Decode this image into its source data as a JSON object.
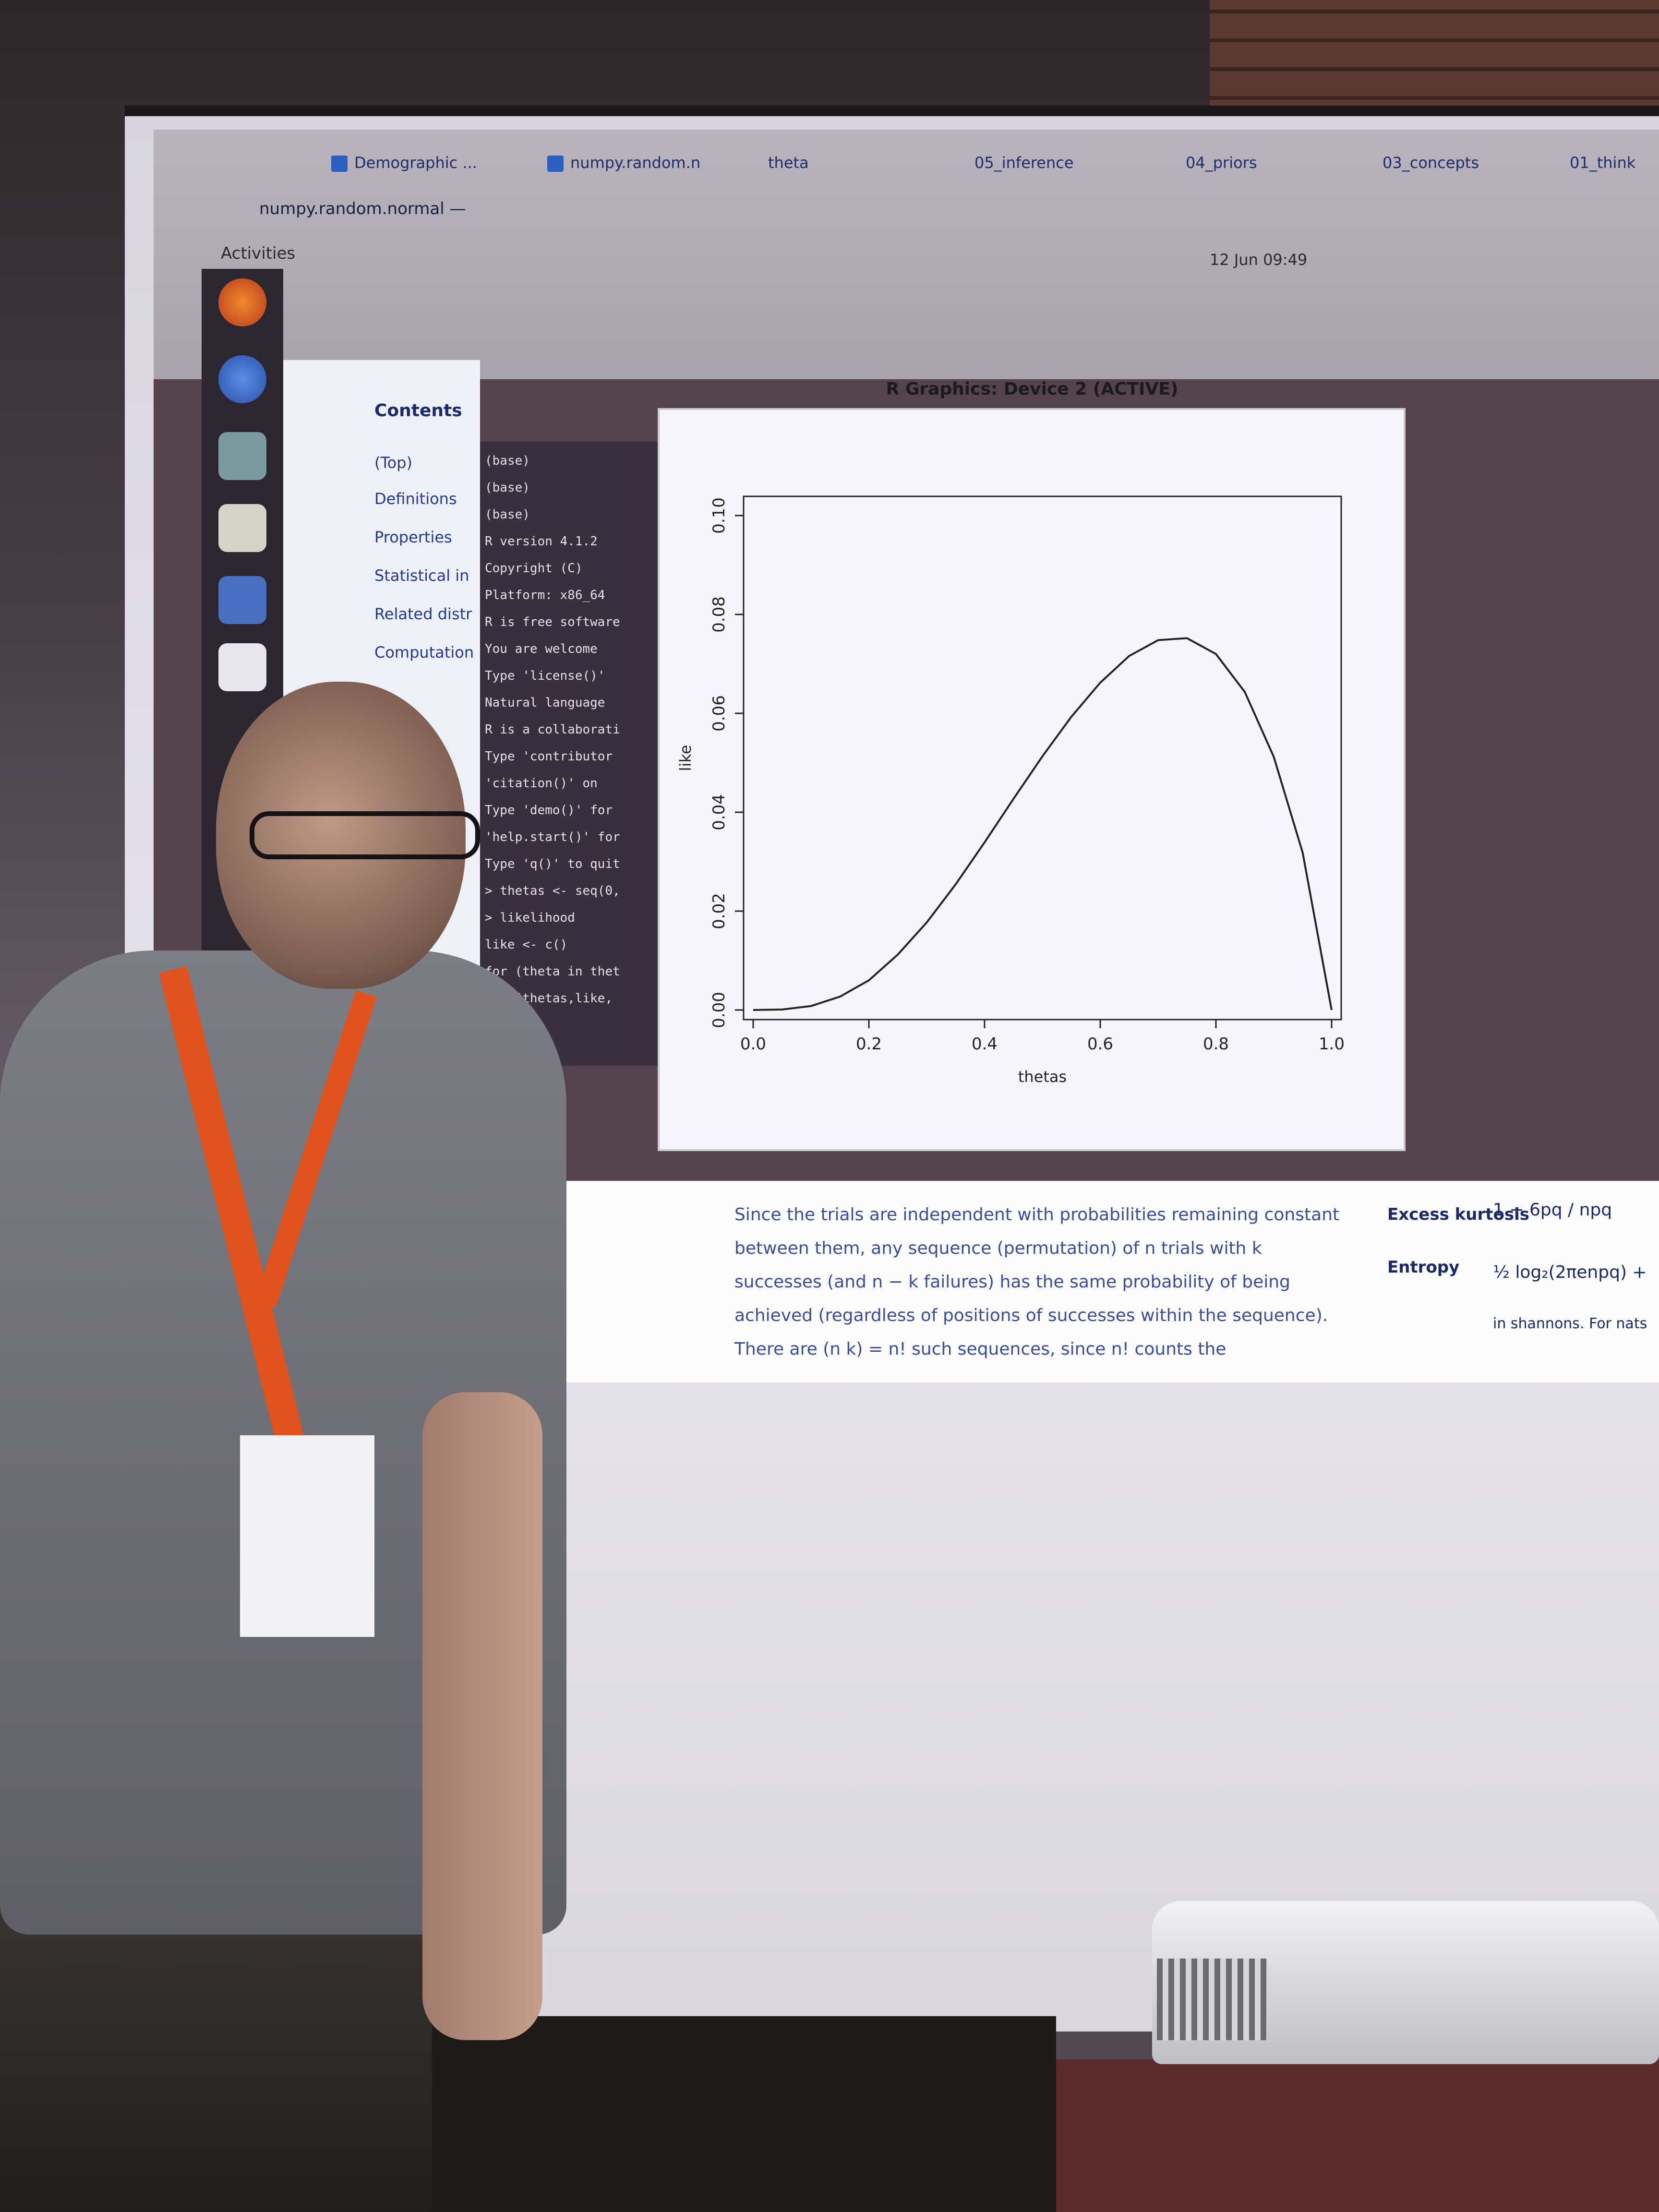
{
  "topbar": {
    "activities": "Activities",
    "clock": "12 Jun 09:49"
  },
  "tabs": [
    {
      "label": "Demographic ..."
    },
    {
      "label": "numpy.random.n"
    },
    {
      "label": "theta"
    },
    {
      "label": "05_inference"
    },
    {
      "label": "04_priors"
    },
    {
      "label": "03_concepts"
    },
    {
      "label": "01_think"
    }
  ],
  "url": "numpy.random.normal —",
  "sidebar": {
    "title": "Contents",
    "items": [
      "(Top)",
      "Definitions",
      "Properties",
      "Statistical in",
      "Related distr",
      "Computation"
    ]
  },
  "terminal": {
    "lines": [
      "(base)",
      "(base)",
      "(base)",
      "R version 4.1.2",
      "Copyright (C)",
      "Platform: x86_64",
      "R is free software",
      "You are welcome",
      "Type 'license()'",
      "Natural language",
      "R is a collaborati",
      "Type 'contributor",
      "'citation()' on",
      "Type 'demo()' for",
      "'help.start()' for",
      "Type 'q()' to quit",
      "> thetas <- seq(0,",
      "> likelihood",
      "  like <- c()",
      "  for (theta in thet",
      "plot(thetas,like,",
      "> ▯"
    ]
  },
  "rwindow": {
    "title": "R Graphics: Device 2 (ACTIVE)"
  },
  "chart_data": {
    "type": "line",
    "xlabel": "thetas",
    "ylabel": "like",
    "xlim": [
      0.0,
      1.0
    ],
    "ylim": [
      0.0,
      0.1
    ],
    "xticks": [
      "0.0",
      "0.2",
      "0.4",
      "0.6",
      "0.8",
      "1.0"
    ],
    "yticks": [
      "0.00",
      "0.02",
      "0.04",
      "0.06",
      "0.08",
      "0.10"
    ],
    "series": [
      {
        "x": [
          0.0,
          0.05,
          0.1,
          0.15,
          0.2,
          0.25,
          0.3,
          0.35,
          0.4,
          0.45,
          0.5,
          0.55,
          0.6,
          0.65,
          0.7,
          0.75,
          0.8,
          0.85,
          0.9,
          0.95,
          1.0
        ],
        "y": [
          0.0,
          0.0001,
          0.0008,
          0.0027,
          0.006,
          0.0112,
          0.0177,
          0.0254,
          0.0339,
          0.0427,
          0.0513,
          0.0593,
          0.0662,
          0.0716,
          0.0748,
          0.0752,
          0.072,
          0.0643,
          0.0512,
          0.0318,
          0.0
        ]
      }
    ],
    "grid": false
  },
  "doc": {
    "lines": [
      "Since the trials are independent with probabilities remaining constant",
      "between them, any sequence (permutation) of n trials with k",
      "successes (and n − k failures) has the same probability of being",
      "achieved (regardless of positions of successes within the sequence).",
      "There are (n k) = n! such sequences, since n! counts the"
    ],
    "table": [
      {
        "label": "Excess kurtosis",
        "value": "1 − 6pq / npq"
      },
      {
        "label": "Entropy",
        "value": "½ log₂(2πenpq) +"
      },
      {
        "label": "",
        "value": "in shannons. For nats"
      }
    ]
  }
}
